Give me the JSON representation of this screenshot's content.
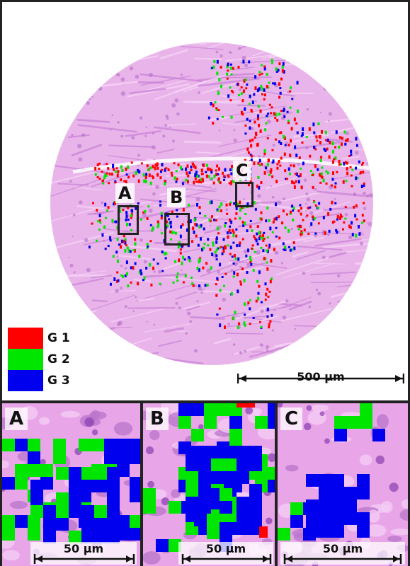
{
  "legend": [
    {
      "label": "G 1",
      "color": "#ff0000"
    },
    {
      "label": "G 2",
      "color": "#00e600"
    },
    {
      "label": "G 3",
      "color": "#0000ee"
    }
  ],
  "main_scale": "500 µm",
  "regions": [
    "A",
    "B",
    "C"
  ],
  "panels": [
    {
      "label": "A",
      "scale": "50 µm"
    },
    {
      "label": "B",
      "scale": "50 µm"
    },
    {
      "label": "C",
      "scale": "50 µm"
    }
  ],
  "colors": {
    "tissue": "#e8a6e8",
    "tissue_dark": "#c77fd4",
    "frame": "#222222"
  }
}
